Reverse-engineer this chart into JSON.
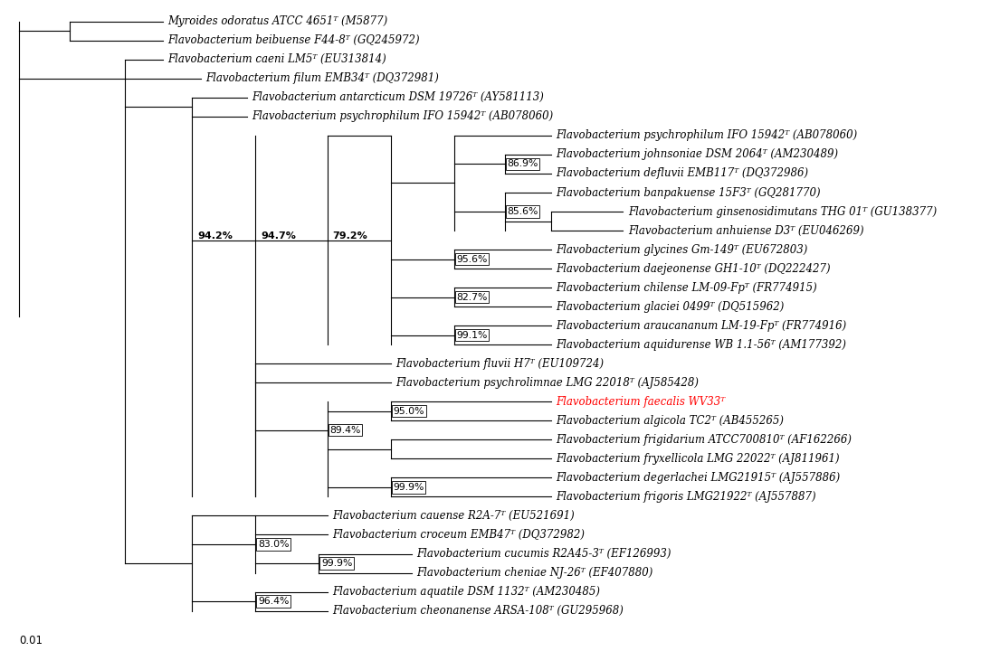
{
  "taxa": [
    {
      "name": "Myroides odoratus ATCC 4651ᵀ (M5877)",
      "y": 1
    },
    {
      "name": "Flavobacterium beibuense F44-8ᵀ (GQ245972)",
      "y": 2
    },
    {
      "name": "Flavobacterium caeni LM5ᵀ (EU313814)",
      "y": 3
    },
    {
      "name": "Flavobacterium filum EMB34ᵀ (DQ372981)",
      "y": 4
    },
    {
      "name": "Flavobacterium antarcticum DSM 19726ᵀ (AY581113)",
      "y": 5
    },
    {
      "name": "Flavobacterium psychrophilum IFO 15942ᵀ (AB078060)",
      "y": 6
    },
    {
      "name": "Flavobacterium psychrophilum IFO 15942ᵀ (AB078060)",
      "y": 7
    },
    {
      "name": "Flavobacterium johnsoniae DSM 2064ᵀ (AM230489)",
      "y": 8
    },
    {
      "name": "Flavobacterium defluvii EMB117ᵀ (DQ372986)",
      "y": 9
    },
    {
      "name": "Flavobacterium banpakuense 15F3ᵀ (GQ281770)",
      "y": 10
    },
    {
      "name": "Flavobacterium ginsenosidimutans THG 01ᵀ (GU138377)",
      "y": 11
    },
    {
      "name": "Flavobacterium anhuiense D3ᵀ (EU046269)",
      "y": 12
    },
    {
      "name": "Flavobacterium glycines Gm-149ᵀ (EU672803)",
      "y": 13
    },
    {
      "name": "Flavobacterium daejeonense GH1-10ᵀ (DQ222427)",
      "y": 14
    },
    {
      "name": "Flavobacterium chilense LM-09-Fpᵀ (FR774915)",
      "y": 15
    },
    {
      "name": "Flavobacterium glaciei 0499ᵀ (DQ515962)",
      "y": 16
    },
    {
      "name": "Flavobacterium araucananum LM-19-Fpᵀ (FR774916)",
      "y": 17
    },
    {
      "name": "Flavobacterium aquidurense WB 1.1-56ᵀ (AM177392)",
      "y": 18
    },
    {
      "name": "Flavobacterium fluvii H7ᵀ (EU109724)",
      "y": 19
    },
    {
      "name": "Flavobacterium psychrolimnae LMG 22018ᵀ (AJ585428)",
      "y": 20
    },
    {
      "name": "Flavobacterium faecalis WV33ᵀ",
      "y": 21,
      "color": "red"
    },
    {
      "name": "Flavobacterium algicola TC2ᵀ (AB455265)",
      "y": 22
    },
    {
      "name": "Flavobacterium frigidarium ATCC700810ᵀ (AF162266)",
      "y": 23
    },
    {
      "name": "Flavobacterium fryxellicola LMG 22022ᵀ (AJ811961)",
      "y": 24
    },
    {
      "name": "Flavobacterium degerlachei LMG21915ᵀ (AJ557886)",
      "y": 25
    },
    {
      "name": "Flavobacterium frigoris LMG21922ᵀ (AJ557887)",
      "y": 26
    },
    {
      "name": "Flavobacterium cauense R2A-7ᵀ (EU521691)",
      "y": 27
    },
    {
      "name": "Flavobacterium croceum EMB47ᵀ (DQ372982)",
      "y": 28
    },
    {
      "name": "Flavobacterium cucumis R2A45-3ᵀ (EF126993)",
      "y": 29
    },
    {
      "name": "Flavobacterium cheniae NJ-26ᵀ (EF407880)",
      "y": 30
    },
    {
      "name": "Flavobacterium aquatile DSM 1132ᵀ (AM230485)",
      "y": 31
    },
    {
      "name": "Flavobacterium cheonanense ARSA-108ᵀ (GU295968)",
      "y": 32
    }
  ],
  "background_color": "#ffffff",
  "line_color": "#000000",
  "fontsize": 8.5
}
